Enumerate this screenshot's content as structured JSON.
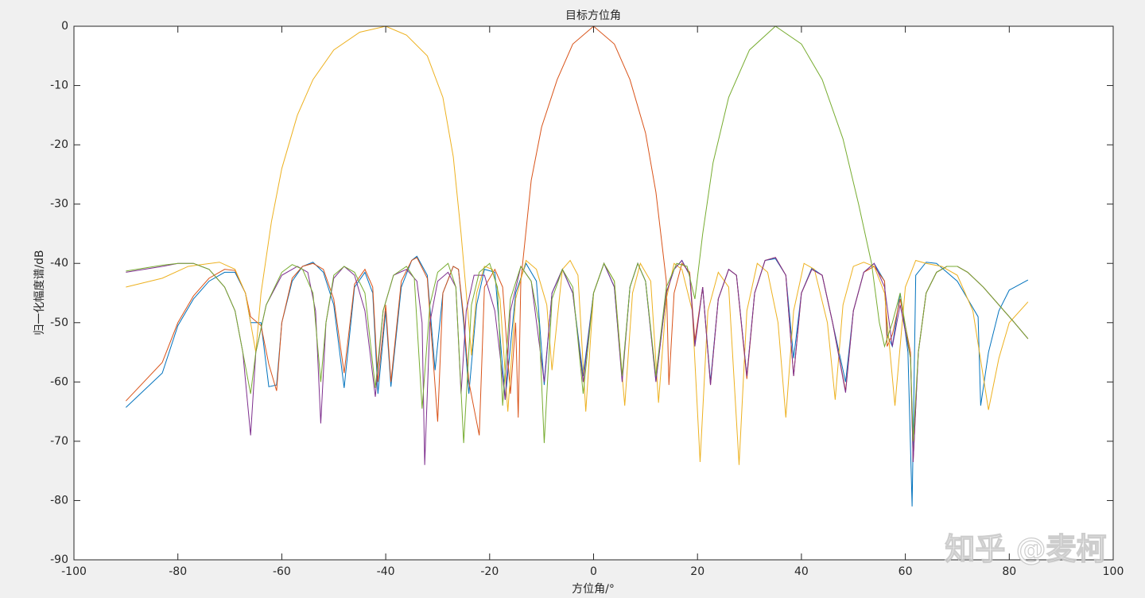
{
  "chart_data": {
    "type": "line",
    "title": "目标方位角",
    "xlabel": "方位角/°",
    "ylabel": "归一化幅度谱/dB",
    "watermark": "知乎 @麦柯",
    "xlim": [
      -100,
      100
    ],
    "xticks": [
      -100,
      -80,
      -60,
      -40,
      -20,
      0,
      20,
      40,
      60,
      80,
      100
    ],
    "ylim": [
      -90,
      0
    ],
    "yticks": [
      -90,
      -80,
      -70,
      -60,
      -50,
      -40,
      -30,
      -20,
      -10,
      0
    ],
    "grid": false,
    "series": [
      {
        "color": "#0072BD",
        "x": [
          -90,
          -83,
          -80,
          -77,
          -74,
          -71,
          -69,
          -67,
          -66,
          -64,
          -62.5,
          -61,
          -60,
          -58,
          -56,
          -54,
          -52,
          -50,
          -48,
          -46,
          -44,
          -42.5,
          -41.5,
          -40,
          -39,
          -37,
          -35,
          -34,
          -32,
          -30.5,
          -29,
          -27,
          -26,
          -25,
          -24,
          -22.5,
          -21,
          -19,
          -17,
          -15,
          -13,
          -11,
          -9.5,
          -8,
          -6,
          -4,
          -2,
          0,
          2,
          4,
          5.5,
          7,
          8.5,
          10,
          12,
          14,
          15.5,
          17,
          18.5,
          19.5,
          21,
          22.5,
          24,
          26,
          27.5,
          29.5,
          31,
          33,
          35,
          37,
          38.5,
          40,
          42,
          44,
          46,
          48.5,
          50,
          52,
          54,
          56,
          56.5,
          57.5,
          59,
          60.5,
          61.3,
          62,
          64,
          66,
          68,
          70,
          72,
          74,
          74.5,
          76,
          78,
          80,
          83.6
        ],
        "values": [
          -64.3,
          -58.5,
          -50.5,
          -46,
          -43,
          -41.5,
          -41.5,
          -45,
          -50,
          -50,
          -60.8,
          -60.5,
          -50,
          -43,
          -40.5,
          -39.8,
          -41.5,
          -47,
          -61,
          -44,
          -41.5,
          -45,
          -62,
          -48,
          -60.8,
          -44,
          -39.5,
          -38.8,
          -42,
          -58,
          -45,
          -40.5,
          -41,
          -50,
          -62,
          -47,
          -41,
          -41.5,
          -63,
          -45,
          -40,
          -43,
          -60.5,
          -45,
          -41,
          -45,
          -59,
          -45,
          -40,
          -44,
          -59.5,
          -44,
          -40,
          -43,
          -59.8,
          -45,
          -41,
          -39.5,
          -42,
          -53.5,
          -44,
          -60,
          -46,
          -41,
          -42,
          -59,
          -45,
          -39.5,
          -39.2,
          -42,
          -56,
          -45,
          -40.8,
          -42,
          -50,
          -60,
          -48,
          -41.5,
          -40,
          -43,
          -52,
          -54,
          -45,
          -55,
          -81,
          -42,
          -39.8,
          -40,
          -41.5,
          -43,
          -46,
          -49,
          -64,
          -55,
          -48,
          -44.5,
          -42.8
        ]
      },
      {
        "color": "#D95319",
        "x": [
          -90,
          -83,
          -80,
          -77,
          -74,
          -71,
          -69,
          -67,
          -66,
          -64,
          -62.5,
          -61,
          -60,
          -58,
          -56,
          -54,
          -52,
          -50,
          -48,
          -46,
          -44,
          -42.5,
          -41.5,
          -40,
          -39,
          -37,
          -35,
          -34,
          -32,
          -30,
          -29,
          -27,
          -26,
          -25,
          -24,
          -22,
          -21,
          -19,
          -17.5,
          -16,
          -15,
          -14.5,
          -14,
          -12,
          -10,
          -7,
          -4,
          0,
          4,
          7,
          10,
          12,
          14,
          14.5,
          15.5,
          17,
          18.5,
          19.5,
          21,
          22.5,
          24,
          26,
          27.5,
          29.5,
          31,
          33,
          35,
          37,
          38.5,
          40,
          42,
          44,
          46,
          48.5,
          50,
          52,
          54,
          56,
          56.5,
          57.5,
          59,
          61,
          61.5,
          62.5,
          64,
          66,
          68,
          70,
          72,
          75,
          78,
          81,
          83.6
        ],
        "values": [
          -63.2,
          -56.7,
          -50,
          -45.5,
          -42.5,
          -41,
          -41.2,
          -45,
          -49,
          -50.5,
          -57,
          -61.5,
          -50,
          -42.5,
          -40.5,
          -40,
          -41,
          -46,
          -58.5,
          -43.5,
          -41,
          -44,
          -60,
          -47,
          -60,
          -43,
          -39.5,
          -39,
          -42.5,
          -66.7,
          -45,
          -40.5,
          -41,
          -49,
          -60,
          -69,
          -44,
          -41,
          -44,
          -62,
          -50,
          -66,
          -43,
          -26,
          -17,
          -9,
          -3,
          0,
          -3,
          -9,
          -18,
          -28,
          -43,
          -60.5,
          -45,
          -40,
          -41.5,
          -53,
          -44,
          -60.5,
          -46,
          -41,
          -42,
          -59.5,
          -45,
          -39.5,
          -39,
          -42,
          -59,
          -45,
          -41,
          -42,
          -50,
          -61.5,
          -48,
          -41.5,
          -40.5,
          -43,
          -54,
          -52,
          -46,
          -55,
          -73.5,
          -55,
          -45,
          -41.5,
          -40.5,
          -40.5,
          -41.5,
          -44,
          -47,
          -50,
          -52.7
        ]
      },
      {
        "color": "#EDB120",
        "x": [
          -90,
          -83,
          -78,
          -72,
          -69,
          -67,
          -66,
          -65,
          -64.5,
          -64,
          -62,
          -60,
          -57,
          -54,
          -50,
          -45,
          -40,
          -36,
          -32,
          -29,
          -27,
          -25.5,
          -24.5,
          -23.5,
          -22.5,
          -21,
          -19.5,
          -18,
          -16.5,
          -15,
          -13,
          -11,
          -9,
          -8,
          -6,
          -4.5,
          -3,
          -1.5,
          0,
          2,
          4,
          6,
          7.5,
          9,
          11,
          12.5,
          14,
          15.5,
          17,
          19,
          20.5,
          22,
          24,
          26,
          28,
          29.5,
          31.5,
          33.5,
          35.5,
          37,
          38.5,
          40.5,
          42.5,
          45,
          46.5,
          48,
          50,
          52,
          54,
          56,
          58,
          60,
          62,
          64,
          67,
          70,
          73,
          76,
          78,
          80,
          83.6
        ],
        "values": [
          -44,
          -42.5,
          -40.5,
          -39.8,
          -41,
          -45,
          -50,
          -55,
          -50,
          -45,
          -33,
          -24,
          -15,
          -9,
          -4,
          -1,
          0,
          -1.5,
          -5,
          -12,
          -22,
          -35,
          -45,
          -55.5,
          -45,
          -40.5,
          -41,
          -46,
          -65,
          -46,
          -39.5,
          -41,
          -47,
          -58,
          -41,
          -39.5,
          -42,
          -65,
          -45,
          -40,
          -43,
          -64,
          -45,
          -40,
          -43,
          -63.5,
          -46,
          -40,
          -41,
          -48,
          -73.5,
          -48,
          -41.5,
          -44,
          -74,
          -48,
          -40,
          -41.5,
          -50,
          -66,
          -48,
          -40,
          -41,
          -50,
          -63,
          -47,
          -40.5,
          -39.8,
          -40.5,
          -45,
          -64,
          -44,
          -39.5,
          -40,
          -40.5,
          -42,
          -48,
          -64.7,
          -56,
          -50,
          -46.5
        ]
      },
      {
        "color": "#7E2F8E",
        "x": [
          -90,
          -83,
          -80,
          -77,
          -74,
          -71,
          -69,
          -67.5,
          -66,
          -65,
          -63,
          -60,
          -57,
          -55,
          -53.5,
          -52.5,
          -51.5,
          -50,
          -48,
          -46,
          -44,
          -42,
          -40.5,
          -38.5,
          -36,
          -34,
          -33,
          -32.5,
          -31.5,
          -30,
          -28,
          -26.5,
          -25.5,
          -24.5,
          -23,
          -21,
          -19,
          -17,
          -16,
          -14,
          -12,
          -9.5,
          -8,
          -6,
          -4,
          -2,
          0,
          2,
          4,
          5.5,
          7,
          8.5,
          10,
          12,
          14,
          15.5,
          17,
          18.5,
          19.5,
          21,
          22.5,
          24,
          26,
          27.5,
          29.5,
          31,
          33,
          35,
          37,
          38.5,
          40,
          42,
          44,
          46,
          48.5,
          50,
          52,
          54,
          56,
          57.5,
          59,
          61,
          61.5,
          62.5,
          64,
          66,
          68,
          70,
          72,
          75,
          78,
          81,
          83.6
        ],
        "values": [
          -41.5,
          -40.5,
          -40,
          -40,
          -41,
          -44,
          -48,
          -55,
          -69,
          -55,
          -47,
          -42,
          -40.5,
          -41.5,
          -48,
          -67,
          -50,
          -42.5,
          -40.5,
          -42,
          -48,
          -62.5,
          -48,
          -42,
          -41,
          -43,
          -50,
          -74,
          -50,
          -43,
          -41.5,
          -44,
          -62,
          -48,
          -42,
          -42,
          -48,
          -63,
          -48,
          -40.5,
          -43,
          -60,
          -45,
          -41,
          -45,
          -60,
          -45,
          -40,
          -44,
          -60,
          -44,
          -40,
          -43,
          -60,
          -45,
          -41,
          -39.5,
          -42,
          -54,
          -44,
          -60.5,
          -46,
          -41,
          -42,
          -59,
          -45,
          -39.5,
          -39,
          -42,
          -59,
          -45,
          -41,
          -42,
          -50,
          -61.8,
          -48,
          -41.5,
          -40,
          -44,
          -54,
          -47,
          -56,
          -73.5,
          -55,
          -45,
          -41.5,
          -40.5,
          -40.5,
          -41.5,
          -44,
          -47,
          -50,
          -52.7
        ]
      },
      {
        "color": "#77AC30",
        "x": [
          -90,
          -83,
          -80,
          -77,
          -74,
          -71,
          -69,
          -67.5,
          -66,
          -65,
          -63,
          -60,
          -58,
          -56,
          -54,
          -52.5,
          -51.5,
          -50,
          -48,
          -46,
          -44,
          -42,
          -40.5,
          -38.5,
          -36,
          -34.5,
          -33,
          -31.5,
          -30,
          -28,
          -26.5,
          -25,
          -23.5,
          -22,
          -20,
          -18.5,
          -17.5,
          -16,
          -14,
          -12,
          -10.5,
          -9.5,
          -8,
          -6,
          -4,
          -2,
          0,
          2,
          4,
          5.5,
          7,
          8.5,
          10,
          12,
          14,
          16,
          18,
          19.5,
          21,
          23,
          26,
          30,
          35,
          40,
          44,
          48,
          51,
          53.5,
          55,
          56,
          57.5,
          59,
          61,
          61.5,
          62.5,
          64,
          66,
          68,
          70,
          72,
          75,
          78,
          81,
          83.6
        ],
        "values": [
          -41.3,
          -40.3,
          -40,
          -40,
          -41,
          -44,
          -48,
          -55,
          -62,
          -55,
          -47,
          -41.5,
          -40.2,
          -41,
          -45,
          -60,
          -50,
          -42,
          -40.5,
          -41.5,
          -45,
          -61,
          -48,
          -42,
          -40.5,
          -42.5,
          -64.5,
          -47,
          -41.5,
          -40,
          -44,
          -70.3,
          -47,
          -41.5,
          -40,
          -44,
          -64,
          -46,
          -40.5,
          -43,
          -50,
          -70.3,
          -46,
          -41,
          -44,
          -62,
          -45,
          -40,
          -43,
          -59,
          -44,
          -40,
          -43,
          -59,
          -44,
          -40,
          -40.5,
          -46,
          -35,
          -23,
          -12,
          -4,
          0,
          -3,
          -9,
          -19,
          -30,
          -40,
          -50,
          -54,
          -50,
          -45,
          -56,
          -70,
          -55,
          -45,
          -41.5,
          -40.5,
          -40.5,
          -41.5,
          -44,
          -47,
          -50,
          -52.7
        ]
      }
    ]
  }
}
